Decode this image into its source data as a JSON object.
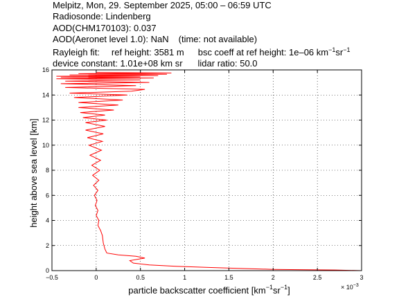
{
  "header": {
    "line1": "Melpitz, Mon, 29. September 2025, 05:00 – 06:59 UTC",
    "line2": "Radiosonde: Lindenberg",
    "line3": "AOD(CHM170103): 0.037",
    "line4_a": "AOD(Aeronet level 1.0): NaN",
    "line4_b": "(time: not available)",
    "line5_a": "Rayleigh fit:",
    "line5_b": "ref height: 3581 m",
    "line5_c": "bsc coeff at ref height: 1e–06 km",
    "line5_c_exp1": "−1",
    "line5_c_mid": "sr",
    "line5_c_exp2": "−1",
    "line6_a": "device constant: 1.01e+08 km sr",
    "line6_b": "lidar ratio: 50.0"
  },
  "chart_data": {
    "type": "line",
    "xlabel": "particle backscatter coefficient [km",
    "xlabel_exp1": "−1",
    "xlabel_mid": "sr",
    "xlabel_exp2": "−1",
    "xlabel_end": "]",
    "ylabel": "height above sea level [km]",
    "xlim": [
      -0.5,
      3.0
    ],
    "ylim": [
      0,
      16
    ],
    "x_scale_note": "× 10",
    "x_scale_exp": "−3",
    "xticks": [
      "−0.5",
      "0",
      "0.5",
      "1",
      "1.5",
      "2",
      "2.5",
      "3"
    ],
    "yticks": [
      "0",
      "2",
      "4",
      "6",
      "8",
      "10",
      "12",
      "14",
      "16"
    ],
    "grid": true,
    "line_color": "#ff0000",
    "series": [
      {
        "values_note": "x in units of 1e-3 km^-1 sr^-1, y in km",
        "x": [
          3.0,
          2.7,
          2.0,
          1.6,
          1.3,
          0.9,
          0.6,
          0.42,
          0.38,
          0.55,
          0.45,
          0.25,
          0.12,
          0.1,
          0.08,
          0.07,
          0.05,
          0.02,
          0.03,
          0.0,
          0.02,
          -0.01,
          0.01,
          -0.02,
          0.02,
          -0.03,
          0.03,
          -0.04,
          0.04,
          -0.05,
          0.05,
          -0.07,
          0.06,
          -0.08,
          0.07,
          -0.1,
          0.08,
          -0.12,
          0.1,
          -0.12,
          0.12,
          -0.15,
          0.1,
          -0.18,
          0.2,
          -0.2,
          0.25,
          -0.2,
          0.3,
          -0.25,
          0.35,
          -0.3,
          0.4,
          0.55,
          -0.35,
          0.45,
          -0.4,
          0.6,
          -0.35,
          0.5,
          -0.45,
          0.65,
          -0.4,
          0.5,
          -0.45,
          0.7,
          -0.3,
          0.8,
          -0.2,
          0.85,
          0.0
        ],
        "y": [
          0.0,
          0.05,
          0.1,
          0.18,
          0.25,
          0.35,
          0.45,
          0.6,
          0.8,
          1.0,
          1.15,
          1.25,
          1.4,
          1.7,
          2.2,
          2.8,
          3.2,
          3.6,
          4.0,
          4.4,
          4.8,
          5.2,
          5.6,
          6.0,
          6.4,
          6.8,
          7.2,
          7.6,
          8.0,
          8.4,
          8.8,
          9.2,
          9.6,
          10.0,
          10.3,
          10.6,
          10.9,
          11.2,
          11.5,
          11.8,
          12.0,
          12.2,
          12.4,
          12.6,
          12.8,
          13.0,
          13.2,
          13.4,
          13.6,
          13.8,
          14.0,
          14.15,
          14.3,
          14.45,
          14.6,
          14.75,
          14.9,
          15.0,
          15.1,
          15.2,
          15.3,
          15.35,
          15.4,
          15.45,
          15.5,
          15.55,
          15.6,
          15.65,
          15.7,
          15.75,
          15.8
        ]
      }
    ]
  }
}
